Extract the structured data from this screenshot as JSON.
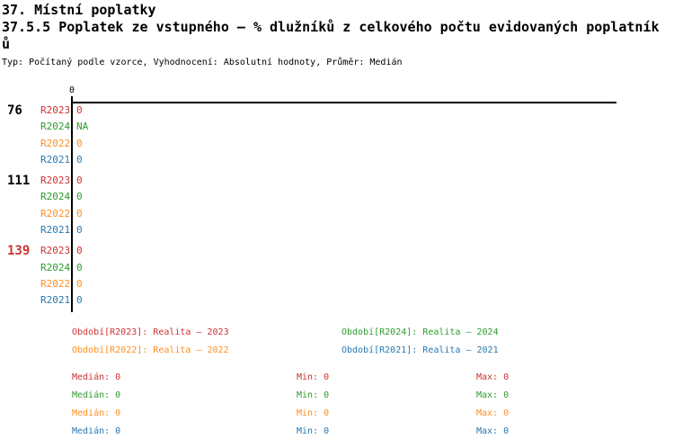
{
  "header": {
    "title": "37. Místní poplatky",
    "subtitle": "37.5.5 Poplatek ze vstupného – % dlužníků z celkového počtu evidovaných poplatníků",
    "meta": "Typ: Počítaný podle vzorce, Vyhodnocení: Absolutní hodnoty, Průměr: Medián"
  },
  "colors": {
    "red": "#cc3333",
    "green": "#2e9b2e",
    "orange": "#ff8e1f",
    "blue": "#2878b0",
    "axis": "#000000"
  },
  "chart": {
    "x_axis_tick_label": "0",
    "groups": [
      {
        "id": "76",
        "rows": [
          {
            "label": "R2023",
            "value": "0"
          },
          {
            "label": "R2024",
            "value": "NA"
          },
          {
            "label": "R2022",
            "value": "0"
          },
          {
            "label": "R2021",
            "value": "0"
          }
        ]
      },
      {
        "id": "111",
        "rows": [
          {
            "label": "R2023",
            "value": "0"
          },
          {
            "label": "R2024",
            "value": "0"
          },
          {
            "label": "R2022",
            "value": "0"
          },
          {
            "label": "R2021",
            "value": "0"
          }
        ]
      },
      {
        "id": "139",
        "rows": [
          {
            "label": "R2023",
            "value": "0"
          },
          {
            "label": "R2024",
            "value": "0"
          },
          {
            "label": "R2022",
            "value": "0"
          },
          {
            "label": "R2021",
            "value": "0"
          }
        ]
      }
    ]
  },
  "legend": {
    "items": [
      {
        "text": "Období[R2023]: Realita – 2023"
      },
      {
        "text": "Období[R2024]: Realita – 2024"
      },
      {
        "text": "Období[R2022]: Realita – 2022"
      },
      {
        "text": "Období[R2021]: Realita – 2021"
      }
    ]
  },
  "stats": {
    "rows": [
      {
        "median": "Medián: 0",
        "min": "Min: 0",
        "max": "Max: 0"
      },
      {
        "median": "Medián: 0",
        "min": "Min: 0",
        "max": "Max: 0"
      },
      {
        "median": "Medián: 0",
        "min": "Min: 0",
        "max": "Max: 0"
      },
      {
        "median": "Medián: 0",
        "min": "Min: 0",
        "max": "Max: 0"
      }
    ]
  },
  "chart_data": {
    "type": "bar",
    "orientation": "horizontal",
    "title": "37.5.5 Poplatek ze vstupného – % dlužníků z celkového počtu evidovaných poplatníků",
    "subtitle_meta": "Typ: Počítaný podle vzorce, Vyhodnocení: Absolutní hodnoty, Průměr: Medián",
    "categories": [
      "76",
      "111",
      "139"
    ],
    "series": [
      {
        "name": "Období[R2023]: Realita – 2023",
        "period": "R2023",
        "color": "#cc3333",
        "values": [
          0,
          0,
          0
        ]
      },
      {
        "name": "Období[R2024]: Realita – 2024",
        "period": "R2024",
        "color": "#2e9b2e",
        "values": [
          null,
          0,
          0
        ],
        "value_labels": [
          "NA",
          "0",
          "0"
        ]
      },
      {
        "name": "Období[R2022]: Realita – 2022",
        "period": "R2022",
        "color": "#ff8e1f",
        "values": [
          0,
          0,
          0
        ]
      },
      {
        "name": "Období[R2021]: Realita – 2021",
        "period": "R2021",
        "color": "#2878b0",
        "values": [
          0,
          0,
          0
        ]
      }
    ],
    "xlabel": "",
    "ylabel": "",
    "xlim": [
      0,
      null
    ],
    "x_ticks": [
      "0"
    ],
    "grid": false,
    "legend_position": "bottom",
    "stats_per_series": [
      {
        "median": 0,
        "min": 0,
        "max": 0
      },
      {
        "median": 0,
        "min": 0,
        "max": 0
      },
      {
        "median": 0,
        "min": 0,
        "max": 0
      },
      {
        "median": 0,
        "min": 0,
        "max": 0
      }
    ]
  }
}
